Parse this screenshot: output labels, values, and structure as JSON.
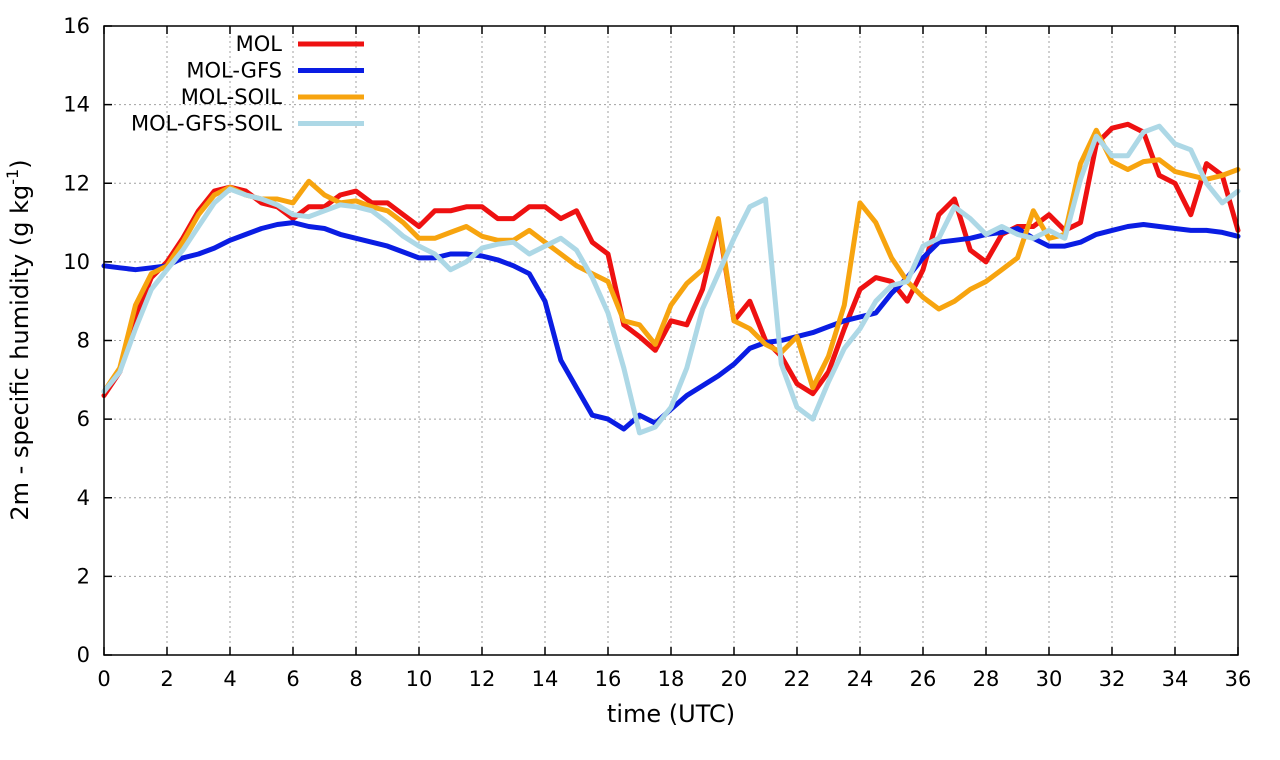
{
  "chart_data": {
    "type": "line",
    "title": "",
    "xlabel": "time (UTC)",
    "ylabel_main": "2m - specific humidity (g kg",
    "ylabel_sup": "-1",
    "ylabel_close": ")",
    "xlim": [
      0,
      36
    ],
    "ylim": [
      0,
      16
    ],
    "xticks": [
      0,
      2,
      4,
      6,
      8,
      10,
      12,
      14,
      16,
      18,
      20,
      22,
      24,
      26,
      28,
      30,
      32,
      34,
      36
    ],
    "yticks": [
      0,
      2,
      4,
      6,
      8,
      10,
      12,
      14,
      16
    ],
    "grid": true,
    "legend_position": "top-left",
    "x": [
      0,
      0.5,
      1,
      1.5,
      2,
      2.5,
      3,
      3.5,
      4,
      4.5,
      5,
      5.5,
      6,
      6.5,
      7,
      7.5,
      8,
      8.5,
      9,
      9.5,
      10,
      10.5,
      11,
      11.5,
      12,
      12.5,
      13,
      13.5,
      14,
      14.5,
      15,
      15.5,
      16,
      16.5,
      17,
      17.5,
      18,
      18.5,
      19,
      19.5,
      20,
      20.5,
      21,
      21.5,
      22,
      22.5,
      23,
      23.5,
      24,
      24.5,
      25,
      25.5,
      26,
      26.5,
      27,
      27.5,
      28,
      28.5,
      29,
      29.5,
      30,
      30.5,
      31,
      31.5,
      32,
      32.5,
      33,
      33.5,
      34,
      34.5,
      35,
      35.5,
      36
    ],
    "series": [
      {
        "name": "MOL",
        "color": "#ee1111",
        "values": [
          6.6,
          7.2,
          8.6,
          9.6,
          10.0,
          10.6,
          11.3,
          11.8,
          11.9,
          11.8,
          11.5,
          11.4,
          11.1,
          11.4,
          11.4,
          11.7,
          11.8,
          11.5,
          11.5,
          11.2,
          10.9,
          11.3,
          11.3,
          11.4,
          11.4,
          11.1,
          11.1,
          11.4,
          11.4,
          11.1,
          11.3,
          10.5,
          10.2,
          8.4,
          8.1,
          7.75,
          8.5,
          8.4,
          9.3,
          11.0,
          8.5,
          9.0,
          8.0,
          7.6,
          6.9,
          6.65,
          7.2,
          8.3,
          9.3,
          9.6,
          9.5,
          9.0,
          9.8,
          11.2,
          11.6,
          10.3,
          10.0,
          10.7,
          10.9,
          10.9,
          11.2,
          10.8,
          11.0,
          13.0,
          13.4,
          13.5,
          13.3,
          12.2,
          12.0,
          11.2,
          12.5,
          12.2,
          10.8
        ]
      },
      {
        "name": "MOL-GFS",
        "color": "#0a1de3",
        "values": [
          9.9,
          9.85,
          9.8,
          9.85,
          9.9,
          10.1,
          10.2,
          10.35,
          10.55,
          10.7,
          10.85,
          10.95,
          11.0,
          10.9,
          10.85,
          10.7,
          10.6,
          10.5,
          10.4,
          10.25,
          10.1,
          10.1,
          10.2,
          10.2,
          10.15,
          10.05,
          9.9,
          9.7,
          9.0,
          7.5,
          6.8,
          6.1,
          6.0,
          5.75,
          6.1,
          5.9,
          6.25,
          6.6,
          6.85,
          7.1,
          7.4,
          7.8,
          7.95,
          8.0,
          8.1,
          8.2,
          8.35,
          8.5,
          8.6,
          8.7,
          9.2,
          9.6,
          10.1,
          10.5,
          10.55,
          10.6,
          10.7,
          10.75,
          10.85,
          10.6,
          10.4,
          10.4,
          10.5,
          10.7,
          10.8,
          10.9,
          10.95,
          10.9,
          10.85,
          10.8,
          10.8,
          10.75,
          10.65
        ]
      },
      {
        "name": "MOL-SOIL",
        "color": "#f7a40f",
        "values": [
          6.7,
          7.3,
          8.9,
          9.7,
          9.9,
          10.5,
          11.2,
          11.7,
          11.9,
          11.7,
          11.6,
          11.6,
          11.5,
          12.05,
          11.7,
          11.5,
          11.55,
          11.4,
          11.3,
          11.0,
          10.6,
          10.6,
          10.75,
          10.9,
          10.65,
          10.55,
          10.55,
          10.8,
          10.5,
          10.2,
          9.9,
          9.7,
          9.5,
          8.5,
          8.4,
          7.9,
          8.9,
          9.45,
          9.8,
          11.1,
          8.5,
          8.3,
          7.9,
          7.7,
          8.1,
          6.8,
          7.6,
          8.9,
          11.5,
          11.0,
          10.1,
          9.5,
          9.1,
          8.8,
          9.0,
          9.3,
          9.5,
          9.8,
          10.1,
          11.3,
          10.6,
          10.7,
          12.5,
          13.35,
          12.55,
          12.35,
          12.55,
          12.6,
          12.3,
          12.2,
          12.1,
          12.2,
          12.35
        ]
      },
      {
        "name": "MOL-GFS-SOIL",
        "color": "#add8e6",
        "values": [
          6.7,
          7.2,
          8.3,
          9.3,
          9.8,
          10.3,
          10.9,
          11.5,
          11.85,
          11.7,
          11.6,
          11.45,
          11.2,
          11.15,
          11.3,
          11.45,
          11.4,
          11.3,
          11.0,
          10.65,
          10.4,
          10.2,
          9.8,
          10.0,
          10.35,
          10.45,
          10.5,
          10.2,
          10.4,
          10.6,
          10.3,
          9.6,
          8.7,
          7.3,
          5.65,
          5.8,
          6.3,
          7.3,
          8.8,
          9.7,
          10.6,
          11.4,
          11.6,
          7.4,
          6.3,
          6.0,
          6.95,
          7.8,
          8.3,
          9.0,
          9.4,
          9.5,
          10.4,
          10.6,
          11.4,
          11.1,
          10.7,
          10.9,
          10.7,
          10.6,
          10.8,
          10.6,
          12.1,
          13.2,
          12.7,
          12.7,
          13.3,
          13.45,
          13.0,
          12.85,
          12.0,
          11.5,
          11.8
        ]
      }
    ]
  }
}
